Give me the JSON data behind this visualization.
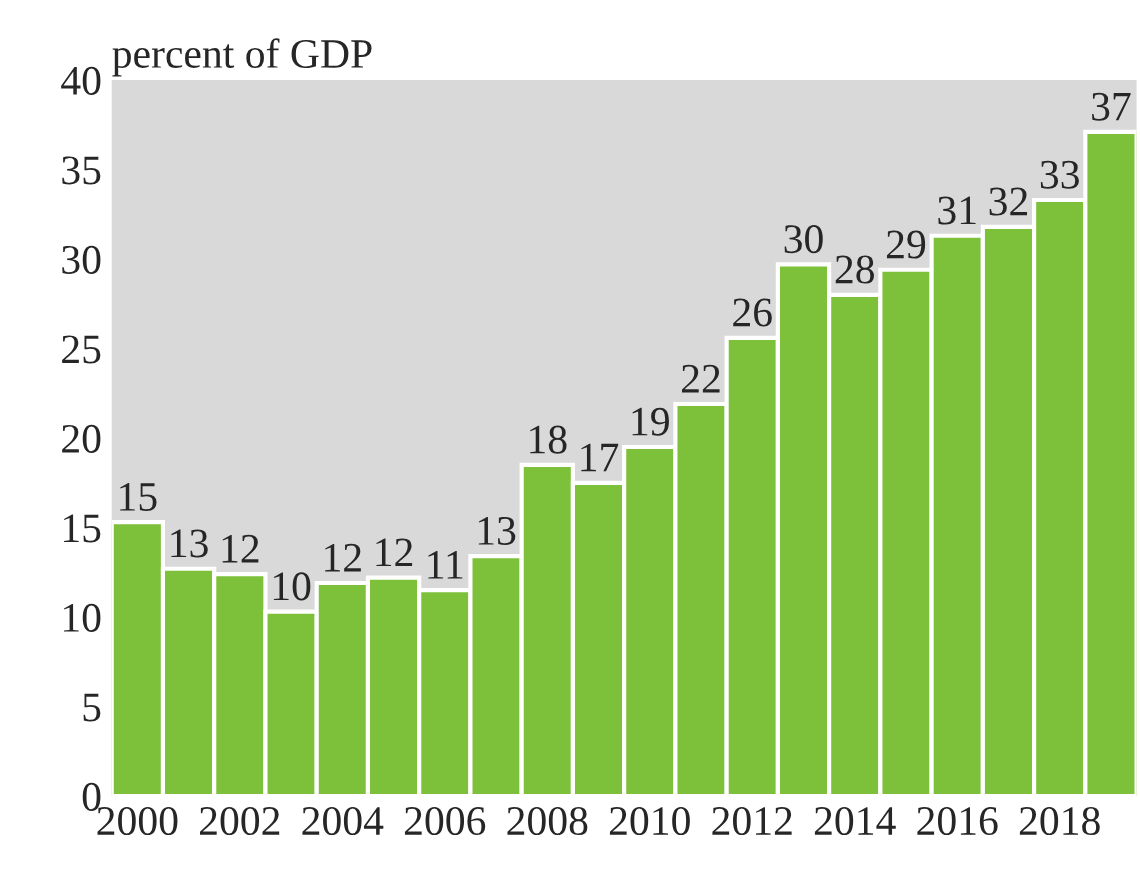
{
  "chart_data": {
    "type": "bar",
    "ylabel": "percent of GDP",
    "categories": [
      "2000",
      null,
      "2002",
      null,
      "2004",
      null,
      "2006",
      null,
      "2008",
      null,
      "2010",
      null,
      "2012",
      null,
      "2014",
      null,
      "2016",
      null,
      "2018",
      null
    ],
    "values": [
      15.3,
      12.7,
      12.4,
      10.3,
      11.9,
      12.2,
      11.5,
      13.4,
      18.5,
      17.5,
      19.5,
      21.9,
      25.6,
      29.7,
      28.0,
      29.4,
      31.3,
      31.8,
      33.3,
      37.1
    ],
    "value_labels": [
      "15",
      "13",
      "12",
      "10",
      "12",
      "12",
      "11",
      "13",
      "18",
      "17",
      "19",
      "22",
      "26",
      "30",
      "28",
      "29",
      "31",
      "32",
      "33",
      "37"
    ],
    "color": "#7dc03a",
    "ylim": [
      0,
      40
    ],
    "yticks": [
      0,
      5,
      10,
      15,
      20,
      25,
      30,
      35,
      40
    ],
    "grid": false,
    "legend": false
  }
}
